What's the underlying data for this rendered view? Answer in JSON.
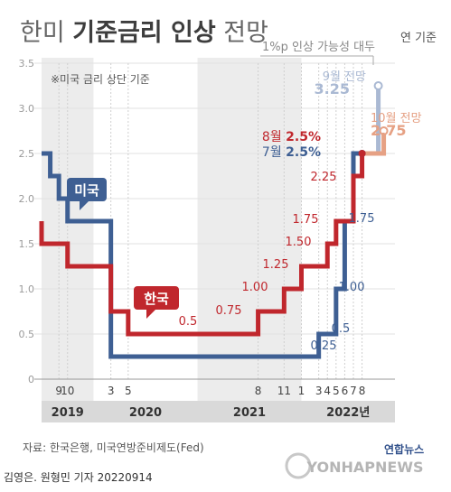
{
  "header": {
    "title_light_1": "한미 ",
    "title_bold": "기준금리 인상",
    "title_light_2": " 전망",
    "unit": "연 기준",
    "note": "※미국 금리 상단 기준",
    "forecast_caption": "1%p 인상 가능성 대두"
  },
  "footer": {
    "source": "자료: 한국은행, 미국연방준비제도(Fed)",
    "credit": "김영은. 원형민 기자 20220914",
    "logo_top": "연합뉴스",
    "logo_bottom": "YONHAPNEWS"
  },
  "colors": {
    "us": "#3e5f93",
    "korea": "#c0272d",
    "us_forecast": "#aab9d3",
    "korea_forecast": "#e6a184",
    "shade": "#ececec",
    "axis_text": "#9a9a9a",
    "year_band": "#d9d9d9"
  },
  "chart_data": {
    "type": "line",
    "title": "한미 기준금리 인상 전망",
    "ylabel": "연 기준",
    "ylim": [
      0,
      3.5
    ],
    "yticks": [
      0,
      0.5,
      1.0,
      1.5,
      2.0,
      2.5,
      3.0,
      3.5
    ],
    "ytick_labels": [
      "0",
      "0.5",
      "1.0",
      "1.5",
      "2.0",
      "2.5",
      "3.0",
      "3.5"
    ],
    "x_tick_labels": [
      "9",
      "10",
      "3",
      "5",
      "8",
      "11",
      "1",
      "3",
      "4",
      "5",
      "6",
      "7",
      "8"
    ],
    "years": [
      "2019",
      "2020",
      "2021",
      "2022년"
    ],
    "series": [
      {
        "name": "미국",
        "style": "step",
        "points": [
          [
            "2019-07",
            2.5
          ],
          [
            "2019-08",
            2.25
          ],
          [
            "2019-09",
            2.0
          ],
          [
            "2019-10",
            1.75
          ],
          [
            "2020-03",
            1.0
          ],
          [
            "2020-03b",
            0.25
          ],
          [
            "2022-03",
            0.5
          ],
          [
            "2022-05",
            1.0
          ],
          [
            "2022-06",
            1.75
          ],
          [
            "2022-07",
            2.5
          ],
          [
            "2022-08",
            2.5
          ]
        ],
        "labels": [
          "0.25",
          "0.5",
          "1.00",
          "1.75",
          "7월 2.5%"
        ],
        "forecast": {
          "label": "9월 전망",
          "value": "3.25"
        }
      },
      {
        "name": "한국",
        "style": "step",
        "points": [
          [
            "2019-06",
            1.75
          ],
          [
            "2019-07",
            1.5
          ],
          [
            "2019-10",
            1.25
          ],
          [
            "2020-03",
            0.75
          ],
          [
            "2020-05",
            0.5
          ],
          [
            "2021-08",
            0.75
          ],
          [
            "2021-11",
            1.0
          ],
          [
            "2022-01",
            1.25
          ],
          [
            "2022-04",
            1.5
          ],
          [
            "2022-05",
            1.75
          ],
          [
            "2022-07",
            2.25
          ],
          [
            "2022-08",
            2.5
          ]
        ],
        "labels": [
          "0.5",
          "0.75",
          "1.00",
          "1.25",
          "1.50",
          "1.75",
          "2.25",
          "8월 2.5%"
        ],
        "forecast": {
          "label": "10월 전망",
          "value": "2.75"
        }
      }
    ]
  }
}
